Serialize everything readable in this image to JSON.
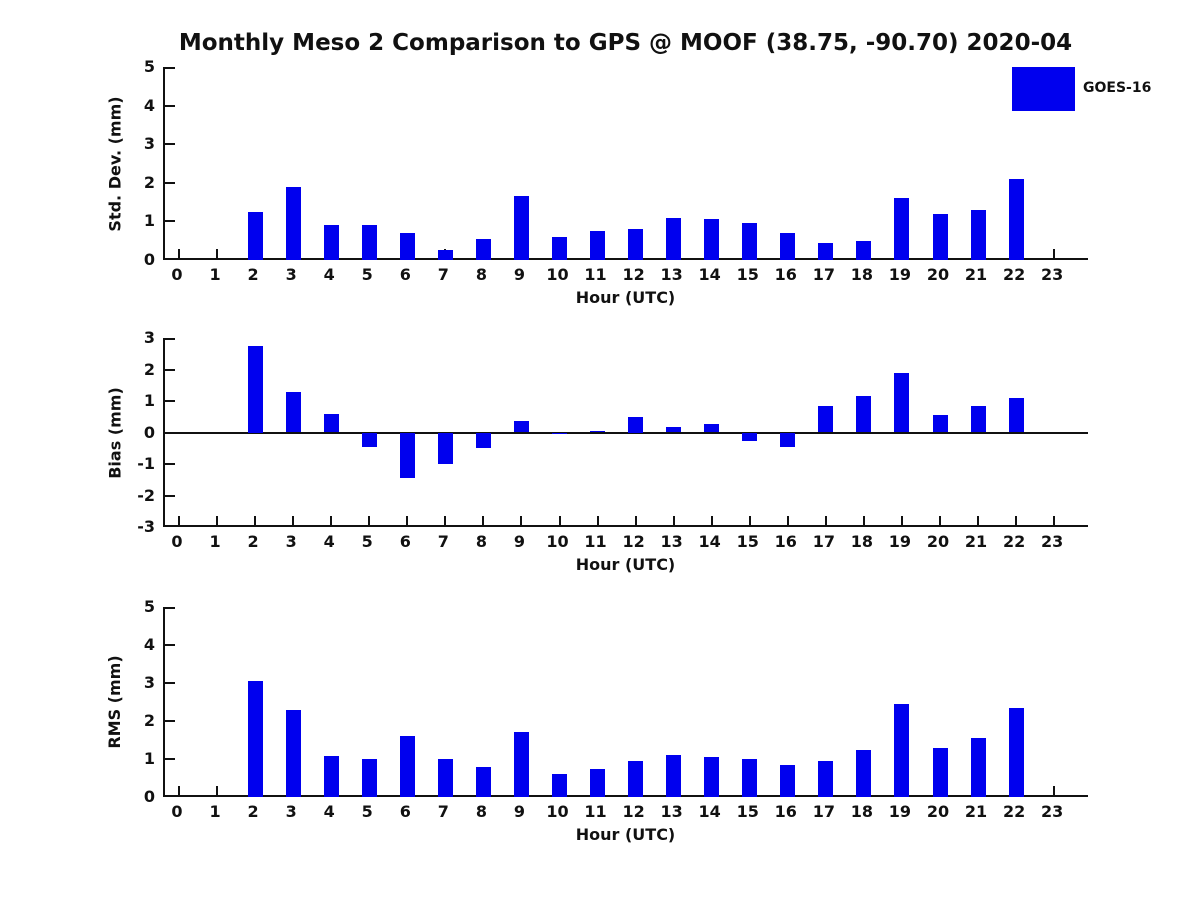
{
  "title": "Monthly Meso 2 Comparison to GPS @ MOOF (38.75, -90.70) 2020-04",
  "legend": {
    "label": "GOES-16",
    "color": "#0000ee"
  },
  "colors": {
    "bar": "#0000ee",
    "axis": "#111111",
    "background": "#ffffff"
  },
  "chart_data": [
    {
      "type": "bar",
      "name": "std-dev",
      "series_name": "GOES-16",
      "ylabel": "Std. Dev. (mm)",
      "xlabel": "Hour (UTC)",
      "ylim": [
        0,
        5
      ],
      "yticks": [
        0,
        1,
        2,
        3,
        4,
        5
      ],
      "categories": [
        "0",
        "1",
        "2",
        "3",
        "4",
        "5",
        "6",
        "7",
        "8",
        "9",
        "10",
        "11",
        "12",
        "13",
        "14",
        "15",
        "16",
        "17",
        "18",
        "19",
        "20",
        "21",
        "22",
        "23"
      ],
      "values": [
        0,
        0,
        1.25,
        1.9,
        0.9,
        0.9,
        0.7,
        0.25,
        0.55,
        1.65,
        0.6,
        0.75,
        0.8,
        1.1,
        1.05,
        0.95,
        0.7,
        0.45,
        0.5,
        1.6,
        1.2,
        1.3,
        2.1,
        0
      ]
    },
    {
      "type": "bar",
      "name": "bias",
      "series_name": "GOES-16",
      "ylabel": "Bias (mm)",
      "xlabel": "Hour (UTC)",
      "ylim": [
        -3,
        3
      ],
      "yticks": [
        -3,
        -2,
        -1,
        0,
        1,
        2,
        3
      ],
      "zero_line": true,
      "categories": [
        "0",
        "1",
        "2",
        "3",
        "4",
        "5",
        "6",
        "7",
        "8",
        "9",
        "10",
        "11",
        "12",
        "13",
        "14",
        "15",
        "16",
        "17",
        "18",
        "19",
        "20",
        "21",
        "22",
        "23"
      ],
      "values": [
        0,
        0,
        2.75,
        1.3,
        0.6,
        -0.45,
        -1.45,
        -1.0,
        -0.5,
        0.35,
        -0.03,
        0.05,
        0.5,
        0.18,
        0.27,
        -0.28,
        -0.45,
        0.85,
        1.15,
        1.9,
        0.55,
        0.85,
        1.08,
        0
      ]
    },
    {
      "type": "bar",
      "name": "rms",
      "series_name": "GOES-16",
      "ylabel": "RMS (mm)",
      "xlabel": "Hour (UTC)",
      "ylim": [
        0,
        5
      ],
      "yticks": [
        0,
        1,
        2,
        3,
        4,
        5
      ],
      "categories": [
        "0",
        "1",
        "2",
        "3",
        "4",
        "5",
        "6",
        "7",
        "8",
        "9",
        "10",
        "11",
        "12",
        "13",
        "14",
        "15",
        "16",
        "17",
        "18",
        "19",
        "20",
        "21",
        "22",
        "23"
      ],
      "values": [
        0,
        0,
        3.05,
        2.3,
        1.07,
        1.0,
        1.6,
        1.0,
        0.78,
        1.7,
        0.6,
        0.75,
        0.95,
        1.1,
        1.05,
        1.0,
        0.85,
        0.95,
        1.25,
        2.45,
        1.3,
        1.55,
        2.35,
        0
      ]
    }
  ]
}
